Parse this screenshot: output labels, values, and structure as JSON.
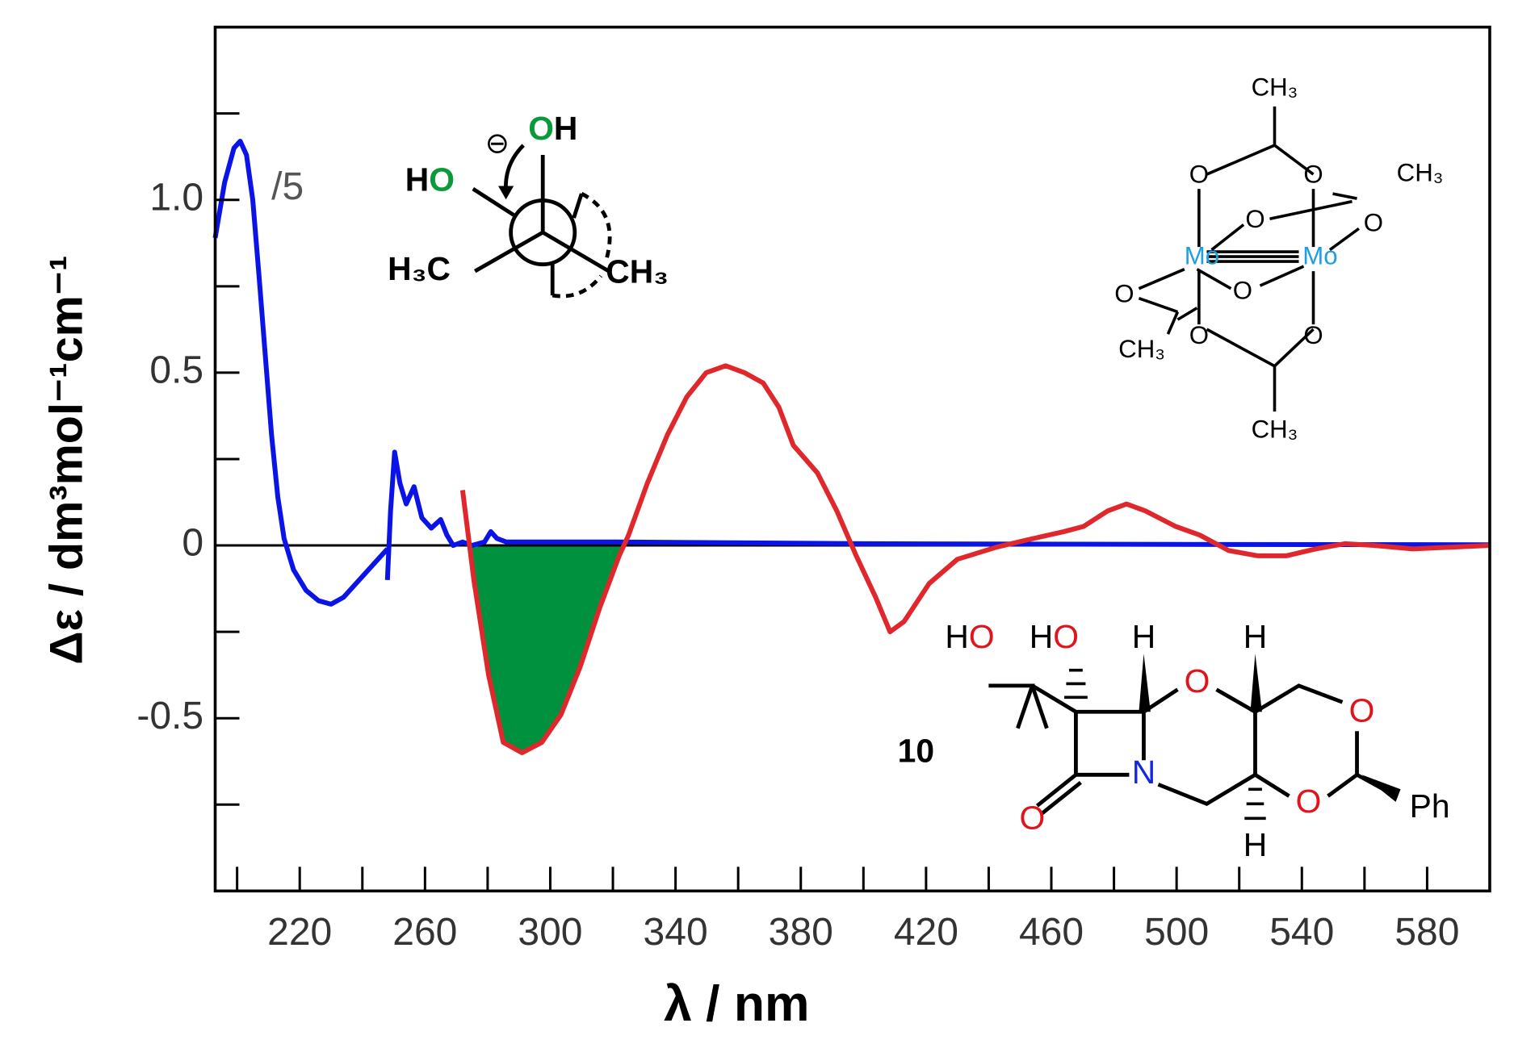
{
  "chart_data": {
    "type": "line",
    "xlabel": "λ / nm",
    "ylabel": "Δε / dm³mol⁻¹cm⁻¹",
    "xlim": [
      193,
      600
    ],
    "ylim": [
      -1,
      1.5
    ],
    "xticks": [
      220,
      260,
      300,
      340,
      380,
      420,
      460,
      500,
      540,
      580
    ],
    "xminorticks": [
      200,
      240,
      280,
      320,
      360,
      400,
      440,
      480,
      520,
      560,
      600
    ],
    "yticks": [
      {
        "value": 1,
        "label": "1.0"
      },
      0.5,
      0,
      -0.5
    ],
    "yminorticks": [
      -0.75,
      -0.25,
      0.25,
      0.75,
      1.25
    ],
    "hline": 0,
    "series": [
      {
        "color": "#0a14e6",
        "x": [
          193,
          196,
          199,
          201,
          203,
          205,
          207,
          209,
          211,
          213,
          215,
          218,
          222,
          226,
          230,
          234,
          238,
          242,
          246,
          248,
          248,
          248,
          249,
          250.3,
          252,
          254,
          256.5,
          259,
          262,
          265,
          267,
          269,
          272,
          275,
          279,
          281,
          283,
          286,
          320,
          400,
          500,
          600
        ],
        "values": [
          0.89,
          1.05,
          1.15,
          1.17,
          1.13,
          1.0,
          0.78,
          0.55,
          0.32,
          0.14,
          0.02,
          -0.07,
          -0.13,
          -0.16,
          -0.17,
          -0.15,
          -0.11,
          -0.07,
          -0.03,
          -0.01,
          null,
          -0.1,
          0.1,
          0.27,
          0.18,
          0.12,
          0.17,
          0.08,
          0.05,
          0.075,
          0.03,
          0.0,
          0.01,
          0.0,
          0.01,
          0.04,
          0.02,
          0.01,
          0.01,
          0.005,
          0.003,
          0.002
        ]
      },
      {
        "color": "#e0282c",
        "x": [
          272,
          275.6,
          280.3,
          285,
          291,
          297.3,
          303.4,
          309.6,
          315.8,
          322,
          325,
          331,
          337.4,
          343.6,
          349.8,
          356,
          362,
          368,
          373,
          377.6,
          385.3,
          391.5,
          397.7,
          403.9,
          408.5,
          413,
          421,
          430,
          442.5,
          451.8,
          464,
          470.3,
          478,
          484,
          490,
          499.7,
          507.4,
          516.7,
          526,
          535,
          544.5,
          553.7,
          563,
          575.4,
          587.7,
          600
        ],
        "values": [
          0.16,
          -0.1,
          -0.375,
          -0.57,
          -0.6,
          -0.57,
          -0.49,
          -0.35,
          -0.18,
          -0.03,
          0.03,
          0.18,
          0.32,
          0.43,
          0.5,
          0.52,
          0.5,
          0.47,
          0.4,
          0.29,
          0.21,
          0.1,
          -0.03,
          -0.15,
          -0.25,
          -0.22,
          -0.11,
          -0.04,
          -0.005,
          0.015,
          0.04,
          0.055,
          0.1,
          0.12,
          0.1,
          0.055,
          0.03,
          -0.015,
          -0.03,
          -0.03,
          -0.01,
          0.005,
          0,
          -0.01,
          -0.005,
          0
        ]
      }
    ],
    "fill": {
      "series": 1,
      "range": [
        274,
        323.3
      ],
      "color": "#00913f"
    },
    "annotations": [
      "/5"
    ],
    "structures": {
      "newman": [
        "HO",
        "OH",
        "H₃C",
        "CH₃",
        "⊖"
      ],
      "dimolybdenum": [
        "CH₃",
        "CH₃",
        "CH₃",
        "CH₃",
        "O",
        "O",
        "O",
        "O",
        "O",
        "O",
        "O",
        "O",
        "Mo",
        "Mo"
      ],
      "compound": [
        "HO",
        "HO",
        "H",
        "O",
        "H",
        "O",
        "10",
        "N",
        "O",
        "O",
        "Ph",
        "H"
      ]
    }
  }
}
